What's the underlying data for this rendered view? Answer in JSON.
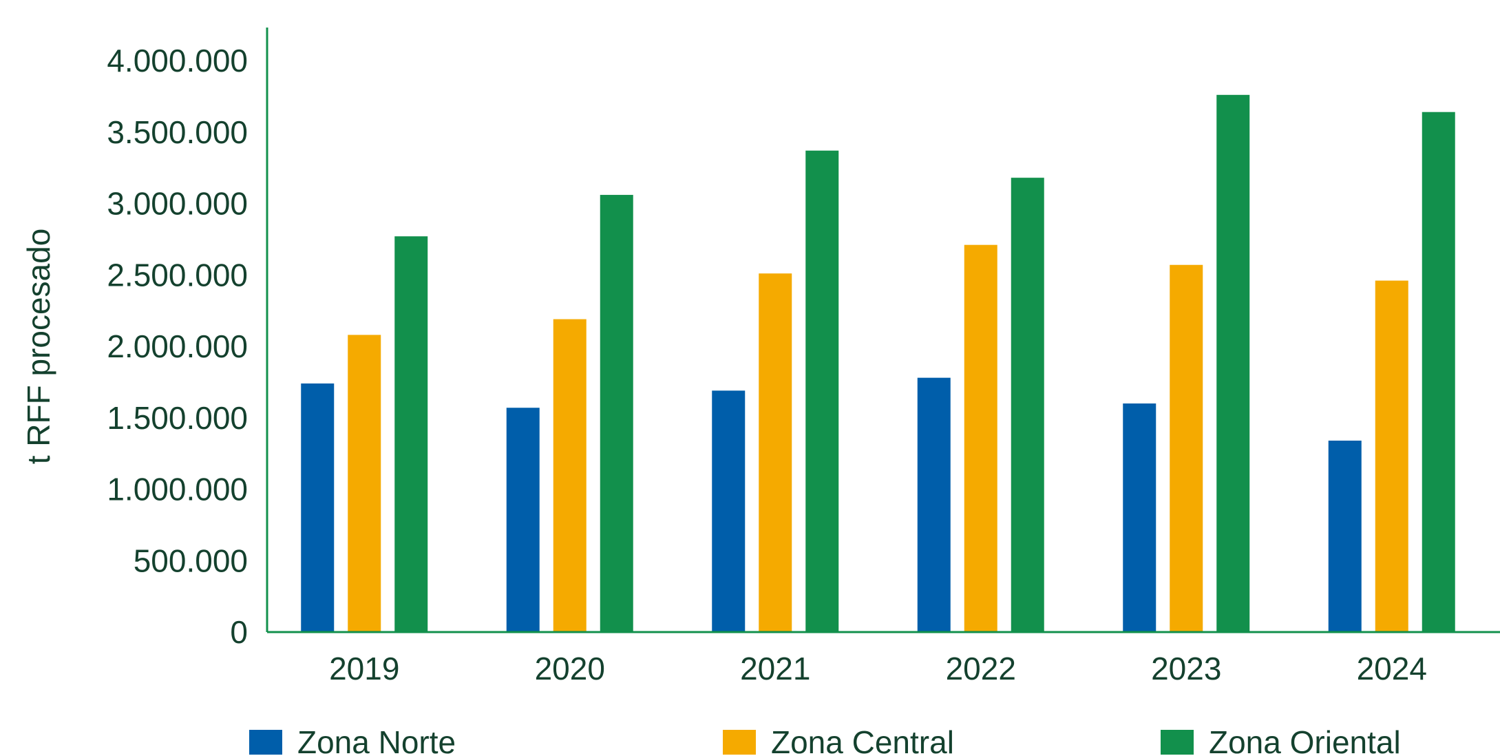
{
  "chart_data": {
    "type": "bar",
    "title": "",
    "xlabel": "",
    "ylabel": "t RFF procesado",
    "categories": [
      "2019",
      "2020",
      "2021",
      "2022",
      "2023",
      "2024"
    ],
    "yticks": [
      "0",
      "500.000",
      "1.000.000",
      "1.500.000",
      "2.000.000",
      "2.500.000",
      "3.000.000",
      "3.500.000",
      "4.000.000"
    ],
    "ylim": [
      0,
      4000000
    ],
    "grid": false,
    "legend_position": "bottom",
    "series": [
      {
        "name": "Zona Norte",
        "color": "#005eaa",
        "values": [
          1740000,
          1570000,
          1690000,
          1780000,
          1600000,
          1340000
        ]
      },
      {
        "name": "Zona Central",
        "color": "#f5aa00",
        "values": [
          2080000,
          2190000,
          2510000,
          2710000,
          2570000,
          2460000
        ]
      },
      {
        "name": "Zona Oriental",
        "color": "#12904c",
        "values": [
          2770000,
          3060000,
          3370000,
          3180000,
          3760000,
          3640000
        ]
      }
    ],
    "axis_color": "#12904c"
  }
}
